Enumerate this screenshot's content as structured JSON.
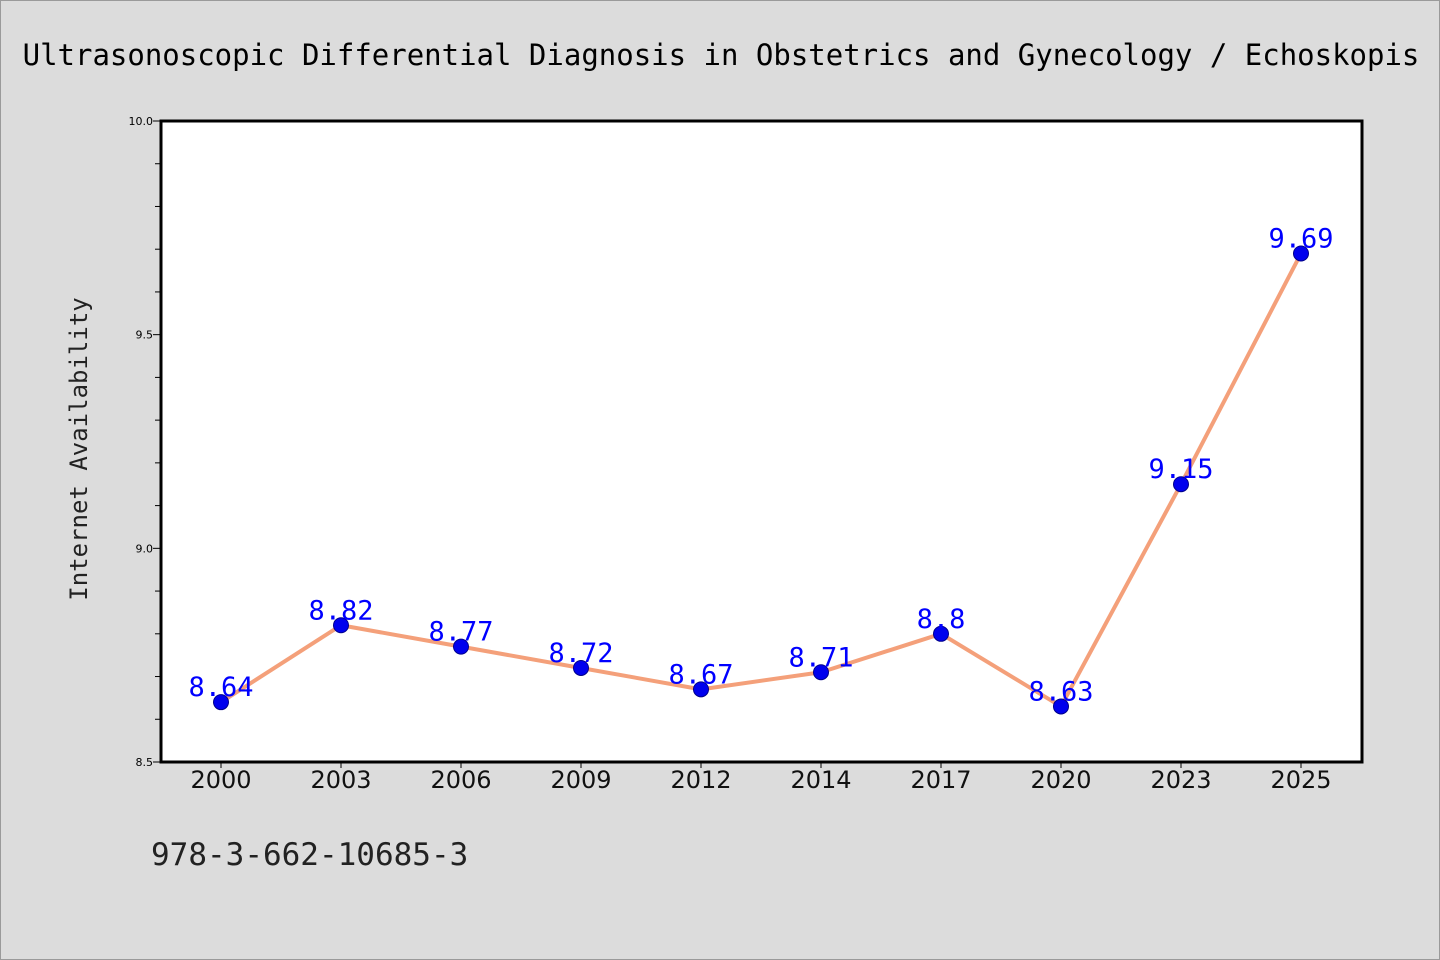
{
  "chart_data": {
    "type": "line",
    "title": "Ultrasonoscopic Differential Diagnosis in Obstetrics and Gynecology / Echoskopis",
    "xlabel": "",
    "ylabel": "Internet Availability",
    "categories": [
      "2000",
      "2003",
      "2006",
      "2009",
      "2012",
      "2014",
      "2017",
      "2020",
      "2023",
      "2025"
    ],
    "series": [
      {
        "values": [
          8.64,
          8.82,
          8.77,
          8.72,
          8.67,
          8.71,
          8.8,
          8.63,
          9.15,
          9.69
        ],
        "data_labels": [
          "8.64",
          "8.82",
          "8.77",
          "8.72",
          "8.67",
          "8.71",
          "8.8",
          "8.63",
          "9.15",
          "9.69"
        ],
        "line_color": "#f4a07a",
        "marker_color": "#0000ee",
        "label_color": "#0000ff"
      }
    ],
    "ylim": [
      8.5,
      10.0
    ],
    "yticks": [
      "8.5",
      "9.0",
      "9.5",
      "10.0"
    ],
    "grid": false,
    "legend": "none"
  },
  "footer": {
    "isbn": "978-3-662-10685-3"
  },
  "colors": {
    "figure_background": "#dcdcdc",
    "plot_background": "#ffffff",
    "axis": "#000000"
  }
}
